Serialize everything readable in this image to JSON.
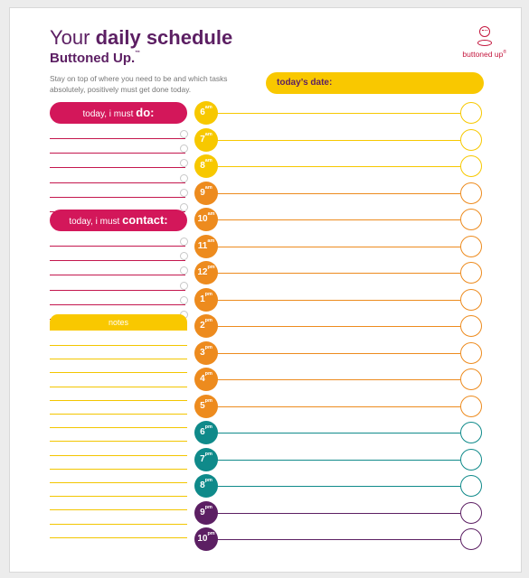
{
  "header": {
    "title_regular": "Your",
    "title_bold": "daily schedule",
    "subtitle": "Buttoned Up.",
    "trademark": "™",
    "intro": "Stay on top of where you need to be and which tasks absolutely, positively must get done today."
  },
  "brand": {
    "name": "buttoned up",
    "mark": "®",
    "icon": "button-logo-icon",
    "color": "#c4173e"
  },
  "date_field": {
    "label": "today’s date:"
  },
  "must_do": {
    "prefix": "today, i must",
    "keyword": "do:",
    "rows": 6
  },
  "must_contact": {
    "prefix": "today, i must",
    "keyword": "contact:",
    "rows": 6
  },
  "notes": {
    "label": "notes",
    "rows": 15
  },
  "colors": {
    "pink": "#d3175a",
    "yellow": "#f9c800",
    "orange": "#ed8b1e",
    "teal": "#0f8a8a",
    "purple": "#5c1f63"
  },
  "time_slots": [
    {
      "hour": "6",
      "period": "am",
      "color": "#f7c800"
    },
    {
      "hour": "7",
      "period": "am",
      "color": "#f7c800"
    },
    {
      "hour": "8",
      "period": "am",
      "color": "#f7c800"
    },
    {
      "hour": "9",
      "period": "am",
      "color": "#ed8b1e"
    },
    {
      "hour": "10",
      "period": "am",
      "color": "#ed8b1e"
    },
    {
      "hour": "11",
      "period": "am",
      "color": "#ed8b1e"
    },
    {
      "hour": "12",
      "period": "pm",
      "color": "#ed8b1e"
    },
    {
      "hour": "1",
      "period": "pm",
      "color": "#ed8b1e"
    },
    {
      "hour": "2",
      "period": "pm",
      "color": "#ed8b1e"
    },
    {
      "hour": "3",
      "period": "pm",
      "color": "#ed8b1e"
    },
    {
      "hour": "4",
      "period": "pm",
      "color": "#ed8b1e"
    },
    {
      "hour": "5",
      "period": "pm",
      "color": "#ed8b1e"
    },
    {
      "hour": "6",
      "period": "pm",
      "color": "#0f8a8a"
    },
    {
      "hour": "7",
      "period": "pm",
      "color": "#0f8a8a"
    },
    {
      "hour": "8",
      "period": "pm",
      "color": "#0f8a8a"
    },
    {
      "hour": "9",
      "period": "pm",
      "color": "#5c1f63"
    },
    {
      "hour": "10",
      "period": "pm",
      "color": "#5c1f63"
    }
  ]
}
